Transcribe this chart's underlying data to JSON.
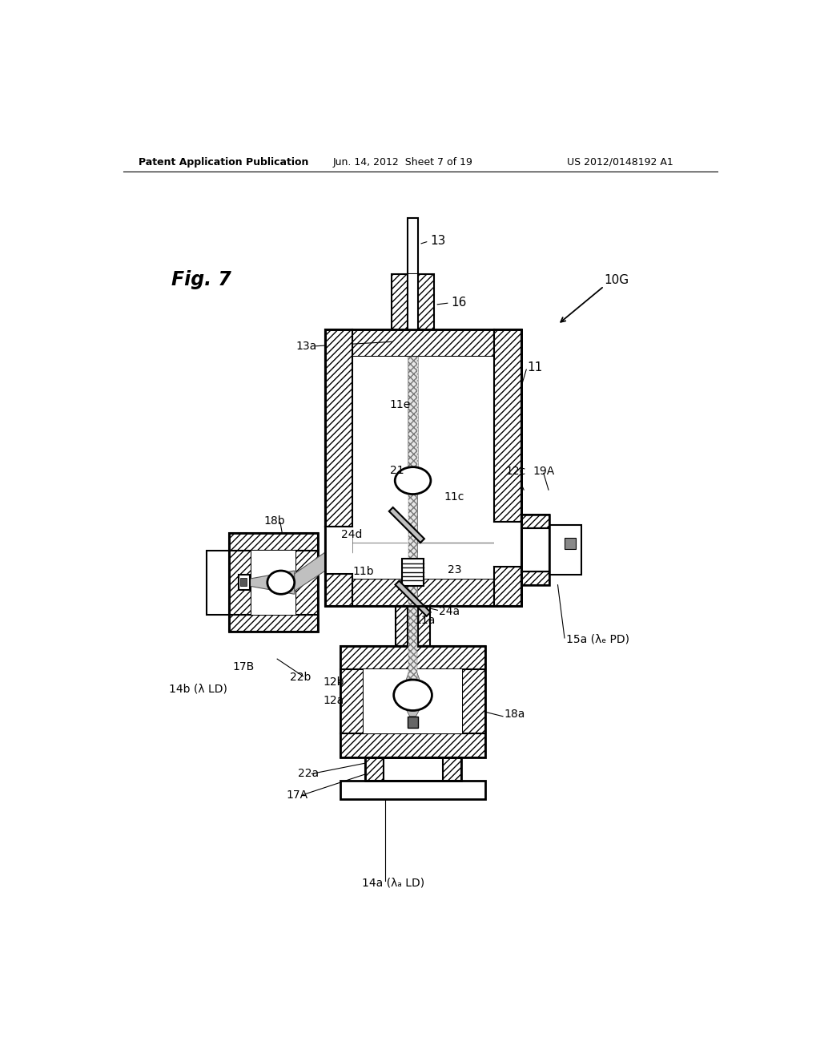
{
  "bg_color": "#ffffff",
  "header_left": "Patent Application Publication",
  "header_center": "Jun. 14, 2012  Sheet 7 of 19",
  "header_right": "US 2012/0148192 A1",
  "fig_label": "Fig. 7",
  "ref_10G": "10G"
}
